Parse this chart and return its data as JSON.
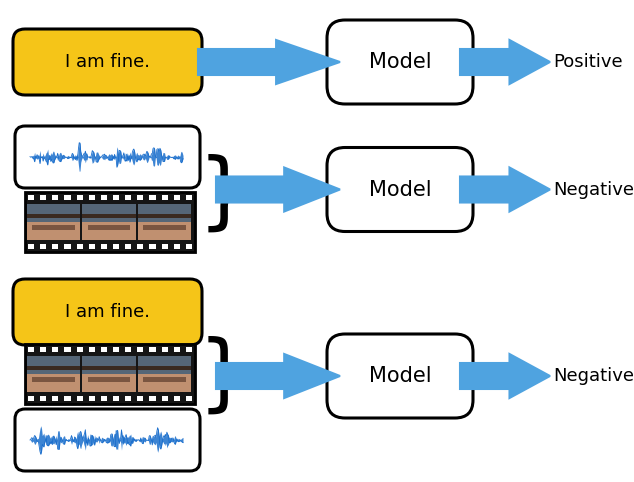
{
  "fig_width": 6.34,
  "fig_height": 4.82,
  "dpi": 100,
  "bg_color": "#ffffff",
  "text_box_color": "#F5C518",
  "text_box_text": "I am fine.",
  "model_box_color": "#ffffff",
  "model_text": "Model",
  "arrow_color": "#4fa3e0",
  "arrow_fill": "#4fa3e0",
  "positive_text": "Positive",
  "negative_text": "Negative",
  "check_color": "#3a9a3a",
  "cross_color": "#cc0000",
  "audio_color": "#1a6ecc",
  "film_dark": "#111111",
  "film_face_top": "#6688aa",
  "film_face_mid": "#bb9977",
  "label_fontsize": 13,
  "model_fontsize": 15
}
